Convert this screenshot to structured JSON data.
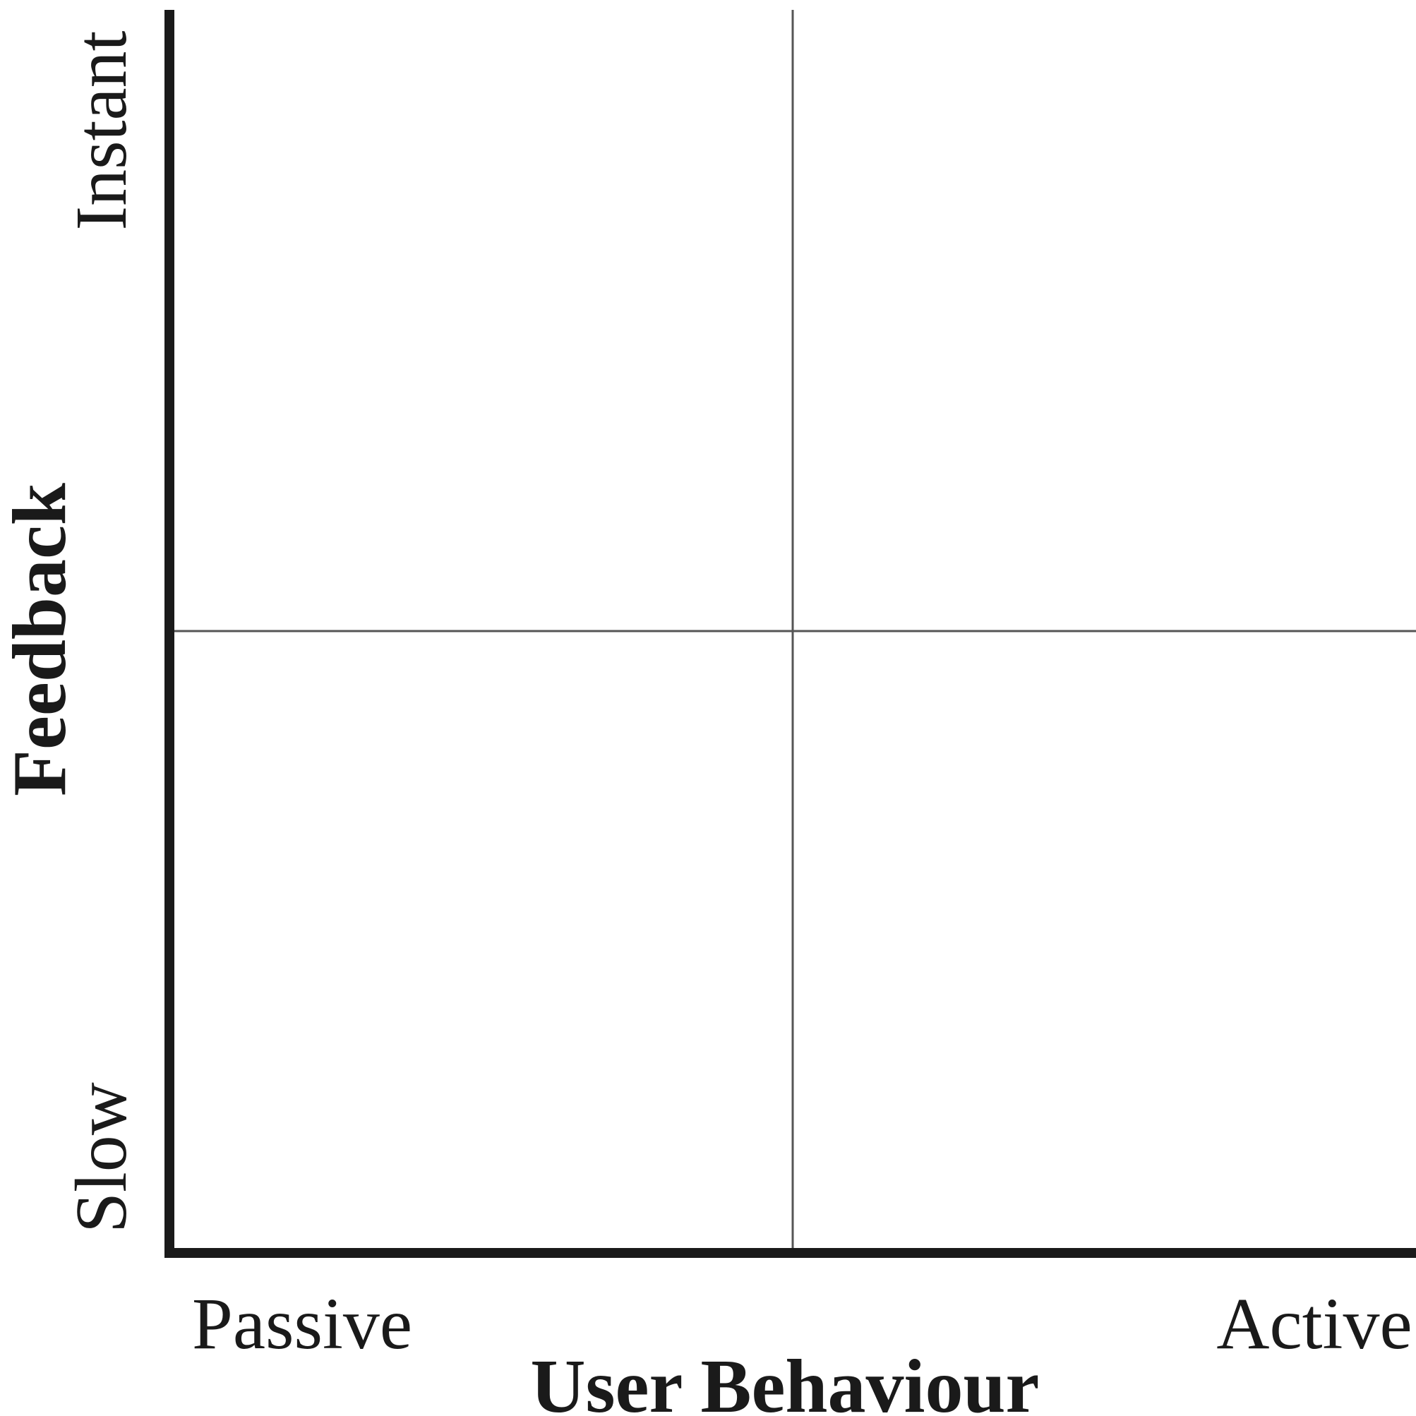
{
  "diagram": {
    "x_axis": {
      "title": "User Behaviour",
      "low_label": "Passive",
      "high_label": "Active"
    },
    "y_axis": {
      "title": "Feedback",
      "low_label": "Slow",
      "high_label": "Instant"
    },
    "colors": {
      "axis": "#1a1a1a",
      "divider": "#555555",
      "text": "#1a1a1a"
    }
  }
}
